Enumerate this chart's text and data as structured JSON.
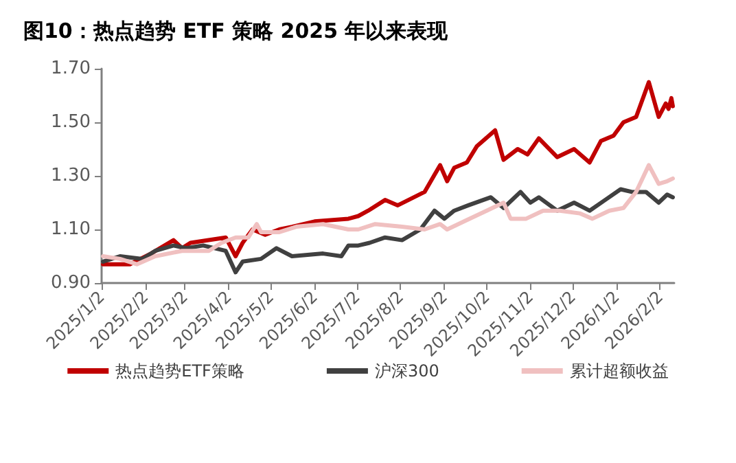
{
  "chart_data": {
    "type": "line",
    "title": "图10：热点趋势 ETF 策略 2025 年以来表现",
    "xlim": [
      "2025-01-02",
      "2026-02-12"
    ],
    "xticks": [
      {
        "value": "2025-01-02",
        "label": "2025/1/2"
      },
      {
        "value": "2025-02-02",
        "label": "2025/2/2"
      },
      {
        "value": "2025-03-02",
        "label": "2025/3/2"
      },
      {
        "value": "2025-04-02",
        "label": "2025/4/2"
      },
      {
        "value": "2025-05-02",
        "label": "2025/5/2"
      },
      {
        "value": "2025-06-02",
        "label": "2025/6/2"
      },
      {
        "value": "2025-07-02",
        "label": "2025/7/2"
      },
      {
        "value": "2025-08-02",
        "label": "2025/8/2"
      },
      {
        "value": "2025-09-02",
        "label": "2025/9/2"
      },
      {
        "value": "2025-10-02",
        "label": "2025/10/2"
      },
      {
        "value": "2025-11-02",
        "label": "2025/11/2"
      },
      {
        "value": "2025-12-02",
        "label": "2025/12/2"
      },
      {
        "value": "2026-01-02",
        "label": "2026/1/2"
      },
      {
        "value": "2026-02-02",
        "label": "2026/2/2"
      }
    ],
    "ylim": [
      0.9,
      1.7
    ],
    "yticks": [
      {
        "value": 0.9,
        "label": "0.90"
      },
      {
        "value": 1.1,
        "label": "1.10"
      },
      {
        "value": 1.3,
        "label": "1.30"
      },
      {
        "value": 1.5,
        "label": "1.50"
      },
      {
        "value": 1.7,
        "label": "1.70"
      }
    ],
    "grid": false,
    "legend": "bottom",
    "series": [
      {
        "name": "热点趋势ETF策略",
        "color": "#c00000",
        "x": [
          "2025-01-03",
          "2025-01-22",
          "2025-02-06",
          "2025-02-22",
          "2025-02-28",
          "2025-03-06",
          "2025-03-31",
          "2025-04-07",
          "2025-04-12",
          "2025-04-19",
          "2025-04-28",
          "2025-05-08",
          "2025-05-17",
          "2025-06-02",
          "2025-06-26",
          "2025-07-03",
          "2025-07-10",
          "2025-07-22",
          "2025-07-31",
          "2025-08-19",
          "2025-08-30",
          "2025-09-04",
          "2025-09-09",
          "2025-09-18",
          "2025-09-25",
          "2025-10-08",
          "2025-10-14",
          "2025-10-24",
          "2025-10-31",
          "2025-11-08",
          "2025-11-21",
          "2025-12-03",
          "2025-12-14",
          "2025-12-22",
          "2025-12-31",
          "2026-01-07",
          "2026-01-16",
          "2026-01-25",
          "2026-02-01",
          "2026-02-06",
          "2026-02-08",
          "2026-02-10",
          "2026-02-11"
        ],
        "values": [
          0.97,
          0.97,
          1.01,
          1.06,
          1.03,
          1.05,
          1.07,
          1.0,
          1.05,
          1.1,
          1.08,
          1.1,
          1.11,
          1.13,
          1.14,
          1.15,
          1.17,
          1.21,
          1.19,
          1.24,
          1.34,
          1.28,
          1.33,
          1.35,
          1.41,
          1.47,
          1.36,
          1.4,
          1.38,
          1.44,
          1.37,
          1.4,
          1.35,
          1.43,
          1.45,
          1.5,
          1.52,
          1.65,
          1.52,
          1.57,
          1.55,
          1.59,
          1.56
        ]
      },
      {
        "name": "沪深300",
        "color": "#404040",
        "x": [
          "2025-01-03",
          "2025-01-15",
          "2025-01-31",
          "2025-02-09",
          "2025-02-22",
          "2025-03-03",
          "2025-03-15",
          "2025-03-31",
          "2025-04-07",
          "2025-04-12",
          "2025-04-25",
          "2025-05-06",
          "2025-05-17",
          "2025-06-08",
          "2025-06-21",
          "2025-06-26",
          "2025-07-03",
          "2025-07-11",
          "2025-07-22",
          "2025-08-03",
          "2025-08-16",
          "2025-08-26",
          "2025-09-02",
          "2025-09-09",
          "2025-09-19",
          "2025-10-05",
          "2025-10-14",
          "2025-10-26",
          "2025-11-02",
          "2025-11-08",
          "2025-11-21",
          "2025-12-03",
          "2025-12-14",
          "2025-12-25",
          "2026-01-05",
          "2026-01-13",
          "2026-01-23",
          "2026-02-01",
          "2026-02-07",
          "2026-02-11"
        ],
        "values": [
          0.98,
          1.0,
          0.99,
          1.02,
          1.04,
          1.03,
          1.04,
          1.02,
          0.94,
          0.98,
          0.99,
          1.03,
          1.0,
          1.01,
          1.0,
          1.04,
          1.04,
          1.05,
          1.07,
          1.06,
          1.1,
          1.17,
          1.14,
          1.17,
          1.19,
          1.22,
          1.18,
          1.24,
          1.2,
          1.22,
          1.17,
          1.2,
          1.17,
          1.21,
          1.25,
          1.24,
          1.24,
          1.2,
          1.23,
          1.22
        ]
      },
      {
        "name": "累计超额收益",
        "color": "#f0c0c0",
        "x": [
          "2025-01-03",
          "2025-01-15",
          "2025-01-27",
          "2025-02-09",
          "2025-02-28",
          "2025-03-19",
          "2025-03-28",
          "2025-04-07",
          "2025-04-16",
          "2025-04-22",
          "2025-04-25",
          "2025-05-08",
          "2025-05-20",
          "2025-06-08",
          "2025-06-26",
          "2025-07-03",
          "2025-07-15",
          "2025-08-03",
          "2025-08-19",
          "2025-08-30",
          "2025-09-04",
          "2025-09-16",
          "2025-10-02",
          "2025-10-14",
          "2025-10-19",
          "2025-10-30",
          "2025-11-11",
          "2025-11-23",
          "2025-12-07",
          "2025-12-16",
          "2025-12-28",
          "2026-01-07",
          "2026-01-16",
          "2026-01-25",
          "2026-02-01",
          "2026-02-07",
          "2026-02-11"
        ],
        "values": [
          1.0,
          0.99,
          0.97,
          1.0,
          1.02,
          1.02,
          1.05,
          1.07,
          1.07,
          1.12,
          1.09,
          1.09,
          1.11,
          1.12,
          1.1,
          1.1,
          1.12,
          1.11,
          1.1,
          1.12,
          1.1,
          1.13,
          1.17,
          1.2,
          1.14,
          1.14,
          1.17,
          1.17,
          1.16,
          1.14,
          1.17,
          1.18,
          1.24,
          1.34,
          1.27,
          1.28,
          1.29
        ]
      }
    ]
  }
}
